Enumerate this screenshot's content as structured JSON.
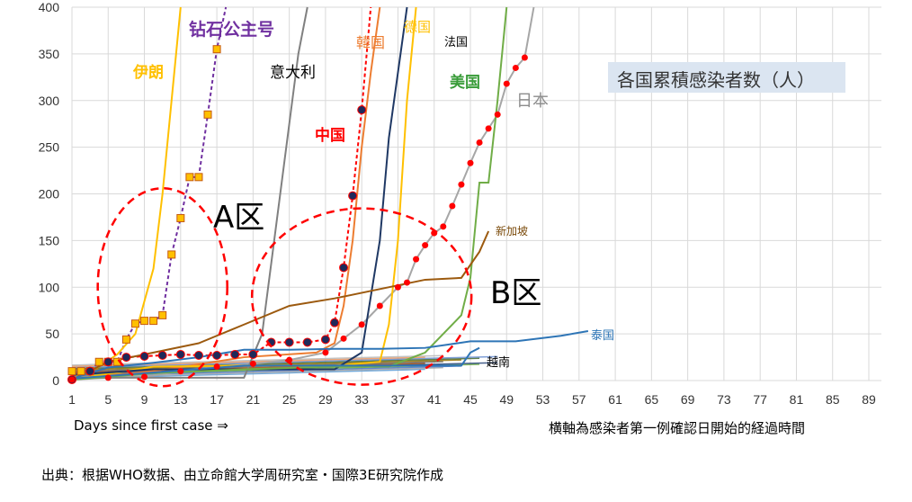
{
  "chart_data": {
    "type": "line",
    "title": "各国累積感染者数（人）",
    "x_axis": {
      "range": [
        1,
        89
      ],
      "tick_labels": [
        "1",
        "5",
        "9",
        "13",
        "17",
        "21",
        "25",
        "29",
        "33",
        "37",
        "41",
        "45",
        "49",
        "53",
        "57",
        "61",
        "65",
        "69",
        "73",
        "77",
        "81",
        "85",
        "89"
      ]
    },
    "y_axis": {
      "range": [
        0,
        400
      ],
      "tick_labels": [
        "0",
        "50",
        "100",
        "150",
        "200",
        "250",
        "300",
        "350",
        "400"
      ]
    },
    "grid": true,
    "xlabel": "Days since first case ⇒",
    "xlabel_right": "横軸為感染者第一例確認日開始的経過時間",
    "source": "出典：根据WHO数据、由立命館大学周研究室・国際3E研究院作成",
    "regions": [
      {
        "name": "A区",
        "cx": 11,
        "cy": 100
      },
      {
        "name": "B区",
        "cx": 33,
        "cy": 90
      }
    ],
    "series": [
      {
        "name": "钻石公主号",
        "color": "#7030a0",
        "marker": "square",
        "x": [
          1,
          2,
          3,
          4,
          5,
          6,
          7,
          8,
          9,
          10,
          11,
          12,
          13,
          14,
          15,
          16,
          17,
          18
        ],
        "y": [
          10,
          10,
          10,
          20,
          20,
          20,
          44,
          61,
          64,
          64,
          70,
          135,
          174,
          218,
          218,
          285,
          355,
          400
        ]
      },
      {
        "name": "中国",
        "color": "#ff0000",
        "marker": "navy-dot",
        "x": [
          1,
          3,
          5,
          7,
          9,
          11,
          13,
          15,
          17,
          19,
          21,
          23,
          25,
          27,
          29,
          30,
          31,
          32,
          33,
          34
        ],
        "y": [
          1,
          10,
          20,
          25,
          26,
          27,
          28,
          27,
          27,
          28,
          28,
          41,
          41,
          41,
          44,
          62,
          121,
          198,
          290,
          400
        ]
      },
      {
        "name": "日本",
        "color": "#a6a6a6",
        "marker": "red-dot",
        "x": [
          1,
          5,
          9,
          13,
          17,
          21,
          25,
          29,
          31,
          33,
          35,
          37,
          38,
          39,
          40,
          41,
          42,
          43,
          44,
          45,
          46,
          47,
          48,
          49,
          50,
          51,
          52
        ],
        "y": [
          1,
          3,
          4,
          10,
          15,
          18,
          22,
          30,
          45,
          60,
          80,
          100,
          105,
          130,
          145,
          158,
          165,
          187,
          210,
          233,
          255,
          270,
          285,
          318,
          335,
          346,
          400
        ]
      },
      {
        "name": "伊朗",
        "color": "#ffc000",
        "x": [
          1,
          4,
          6,
          8,
          10,
          11,
          12,
          13
        ],
        "y": [
          2,
          15,
          28,
          50,
          120,
          200,
          300,
          400
        ]
      },
      {
        "name": "意大利",
        "color": "#808080",
        "x": [
          1,
          10,
          20,
          22,
          24,
          26,
          27
        ],
        "y": [
          3,
          3,
          3,
          50,
          200,
          350,
          400
        ]
      },
      {
        "name": "韓国",
        "color": "#ed7d31",
        "x": [
          1,
          10,
          20,
          28,
          30,
          31,
          32,
          33,
          34,
          35
        ],
        "y": [
          2,
          10,
          25,
          30,
          40,
          80,
          150,
          250,
          330,
          400
        ]
      },
      {
        "name": "德国",
        "color": "#ffc000",
        "x": [
          1,
          10,
          20,
          30,
          35,
          36,
          37,
          38,
          39
        ],
        "y": [
          1,
          15,
          16,
          16,
          20,
          60,
          150,
          300,
          400
        ]
      },
      {
        "name": "法国",
        "color": "#1f3864",
        "x": [
          1,
          10,
          20,
          30,
          33,
          35,
          36,
          37,
          38
        ],
        "y": [
          6,
          12,
          12,
          12,
          30,
          150,
          260,
          330,
          400
        ]
      },
      {
        "name": "美国",
        "color": "#70ad47",
        "x": [
          1,
          10,
          20,
          30,
          36,
          40,
          44,
          45,
          46,
          47,
          48,
          49
        ],
        "y": [
          1,
          8,
          12,
          15,
          15,
          30,
          70,
          110,
          212,
          212,
          300,
          400
        ]
      },
      {
        "name": "新加坡",
        "color": "#9c5a0f",
        "x": [
          1,
          5,
          10,
          15,
          20,
          25,
          30,
          35,
          40,
          44,
          46,
          47
        ],
        "y": [
          1,
          20,
          30,
          40,
          60,
          80,
          88,
          98,
          108,
          110,
          138,
          160
        ]
      },
      {
        "name": "泰国",
        "color": "#2e75b6",
        "x": [
          1,
          5,
          10,
          15,
          20,
          25,
          30,
          35,
          40,
          45,
          50,
          55,
          58
        ],
        "y": [
          2,
          14,
          19,
          25,
          33,
          33,
          34,
          34,
          35,
          42,
          42,
          48,
          53
        ]
      },
      {
        "name": "越南",
        "color": "#2e75b6",
        "x": [
          1,
          20,
          40,
          44,
          45,
          46
        ],
        "y": [
          2,
          16,
          16,
          16,
          30,
          35
        ]
      }
    ]
  }
}
